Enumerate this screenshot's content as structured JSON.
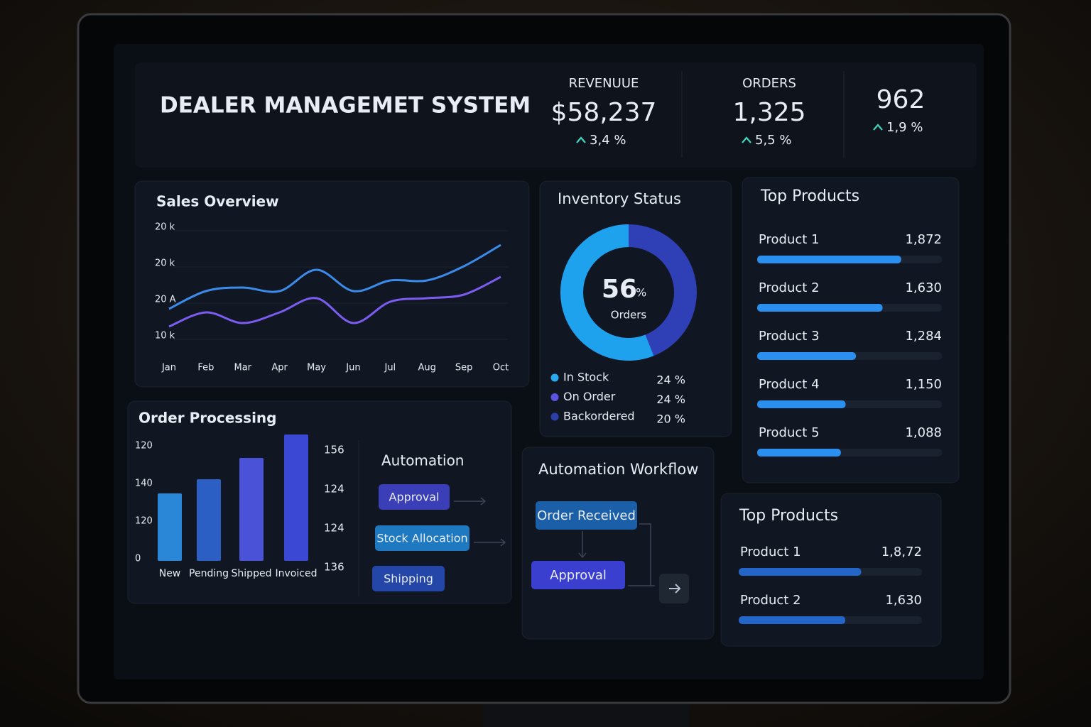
{
  "header": {
    "title": "DEALER MANAGEMET SYSTEM"
  },
  "kpis": [
    {
      "label": "REVENUUE",
      "value": "$58,237",
      "change": "3,4 %"
    },
    {
      "label": "ORDERS",
      "value": "1,325",
      "change": "5,5 %"
    },
    {
      "value": "962",
      "change": "1,9 %"
    }
  ],
  "sales_overview": {
    "title": "Sales Overview",
    "type": "line",
    "categories": [
      "Jan",
      "Feb",
      "Mar",
      "Apr",
      "May",
      "Jun",
      "Jul",
      "Aug",
      "Sep",
      "Oct"
    ],
    "y_labels": [
      "20 k",
      "20 k",
      "20 A",
      "10 k"
    ],
    "ylim": [
      8,
      25
    ],
    "series": [
      {
        "color": "#3b8bea",
        "values": [
          13.5,
          16,
          16.5,
          16,
          19,
          16,
          17.5,
          17.5,
          19.5,
          22.5
        ]
      },
      {
        "color": "#7b5cf0",
        "values": [
          11,
          13,
          11.5,
          13,
          15,
          11.5,
          14.5,
          15,
          15.5,
          18
        ]
      }
    ]
  },
  "inventory": {
    "title": "Inventory Status",
    "center_value": 56,
    "center_unit": "%",
    "center_label": "Orders",
    "ring_colors": [
      "#1fa2ee",
      "#2f3fb5"
    ],
    "legend": [
      {
        "name": "In Stock",
        "value": "24 %",
        "color": "#29a9ee"
      },
      {
        "name": "On Order",
        "value": "24 %",
        "color": "#5a55e0"
      },
      {
        "name": "Backordered",
        "value": "20 %",
        "color": "#2c3fa8"
      }
    ]
  },
  "order_processing": {
    "title": "Order Processing",
    "type": "bar",
    "categories": [
      "New",
      "Pending",
      "Shipped",
      "Invoiced"
    ],
    "values": [
      95,
      115,
      145,
      178
    ],
    "ylim": [
      0,
      190
    ],
    "colors": [
      "#2a86d6",
      "#2b5fc4",
      "#4a52d8",
      "#3a48d4"
    ],
    "left_labels": [
      "120",
      "140",
      "120",
      "0"
    ],
    "right_labels": [
      "156",
      "124",
      "124",
      "136"
    ]
  },
  "automation": {
    "title": "Automation",
    "steps": [
      "Approval",
      "Stock Allocation",
      "Shipping"
    ]
  },
  "workflow": {
    "title": "Automation Workflow",
    "steps": [
      "Order Received",
      "Approval"
    ]
  },
  "top_products": [
    {
      "title": "Top Products",
      "xlim": [
        0,
        2400
      ],
      "color": "#2b8ff0",
      "items": [
        {
          "name": "Product 1",
          "value": 1872,
          "value_label": "1,872"
        },
        {
          "name": "Product 2",
          "value": 1630,
          "value_label": "1,630"
        },
        {
          "name": "Product 3",
          "value": 1284,
          "value_label": "1,284"
        },
        {
          "name": "Product 4",
          "value": 1150,
          "value_label": "1,150"
        },
        {
          "name": "Product 5",
          "value": 1088,
          "value_label": "1,088"
        }
      ]
    },
    {
      "title": "Top Products",
      "xlim": [
        0,
        2800
      ],
      "color": "#2466c8",
      "items": [
        {
          "name": "Product 1",
          "value": 1872,
          "value_label": "1,8,72"
        },
        {
          "name": "Product 2",
          "value": 1630,
          "value_label": "1,630"
        }
      ]
    }
  ]
}
